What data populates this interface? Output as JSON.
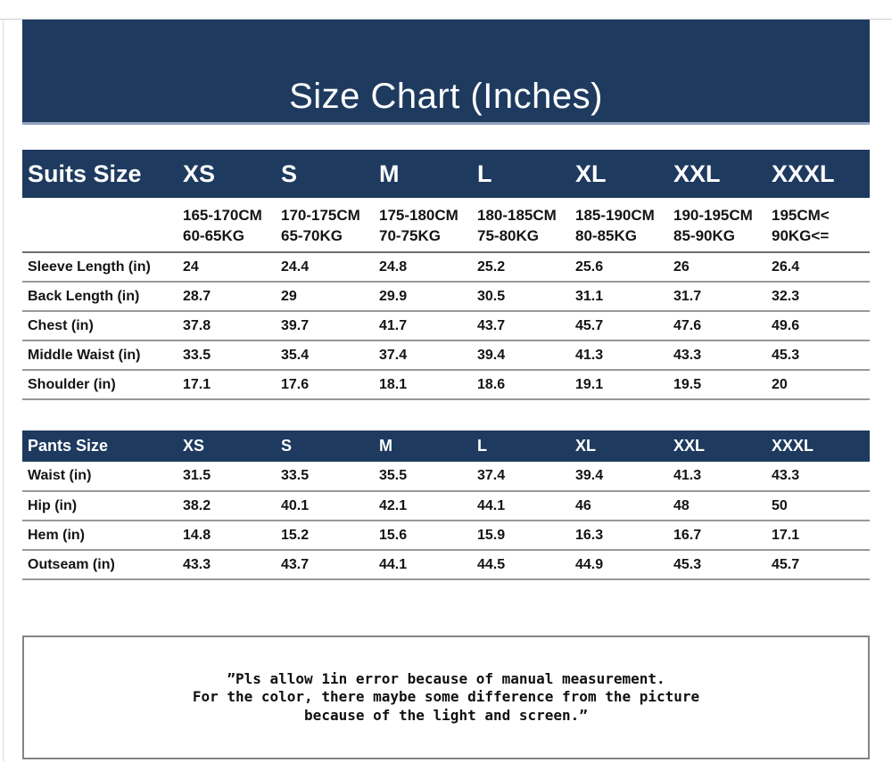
{
  "header": {
    "title": "Size Chart (Inches)"
  },
  "colors": {
    "navy": "#1e3a5f",
    "banner_underline": "#8fa3c0",
    "row_line": "#989898",
    "note_border": "#848484"
  },
  "suits": {
    "title": "Suits Size",
    "sizes": [
      "XS",
      "S",
      "M",
      "L",
      "XL",
      "XXL",
      "XXXL"
    ],
    "height_ranges": [
      "165-170CM",
      "170-175CM",
      "175-180CM",
      "180-185CM",
      "185-190CM",
      "190-195CM",
      "195CM<"
    ],
    "weight_ranges": [
      "60-65KG",
      "65-70KG",
      "70-75KG",
      "75-80KG",
      "80-85KG",
      "85-90KG",
      "90KG<="
    ],
    "rows": [
      {
        "label": "Sleeve Length (in)",
        "values": [
          "24",
          "24.4",
          "24.8",
          "25.2",
          "25.6",
          "26",
          "26.4"
        ]
      },
      {
        "label": "Back Length (in)",
        "values": [
          "28.7",
          "29",
          "29.9",
          "30.5",
          "31.1",
          "31.7",
          "32.3"
        ]
      },
      {
        "label": "Chest (in)",
        "values": [
          "37.8",
          "39.7",
          "41.7",
          "43.7",
          "45.7",
          "47.6",
          "49.6"
        ]
      },
      {
        "label": "Middle Waist (in)",
        "values": [
          "33.5",
          "35.4",
          "37.4",
          "39.4",
          "41.3",
          "43.3",
          "45.3"
        ]
      },
      {
        "label": "Shoulder (in)",
        "values": [
          "17.1",
          "17.6",
          "18.1",
          "18.6",
          "19.1",
          "19.5",
          "20"
        ]
      }
    ]
  },
  "pants": {
    "title": "Pants Size",
    "sizes": [
      "XS",
      "S",
      "M",
      "L",
      "XL",
      "XXL",
      "XXXL"
    ],
    "rows": [
      {
        "label": "Waist (in)",
        "values": [
          "31.5",
          "33.5",
          "35.5",
          "37.4",
          "39.4",
          "41.3",
          "43.3"
        ]
      },
      {
        "label": "Hip (in)",
        "values": [
          "38.2",
          "40.1",
          "42.1",
          "44.1",
          "46",
          "48",
          "50"
        ]
      },
      {
        "label": "Hem (in)",
        "values": [
          "14.8",
          "15.2",
          "15.6",
          "15.9",
          "16.3",
          "16.7",
          "17.1"
        ]
      },
      {
        "label": "Outseam (in)",
        "values": [
          "43.3",
          "43.7",
          "44.1",
          "44.5",
          "44.9",
          "45.3",
          "45.7"
        ]
      }
    ]
  },
  "note": {
    "lines": [
      "”Pls allow 1in error because of manual measurement.",
      "For the color, there maybe some difference from the picture",
      "because of the light and screen.”"
    ]
  }
}
